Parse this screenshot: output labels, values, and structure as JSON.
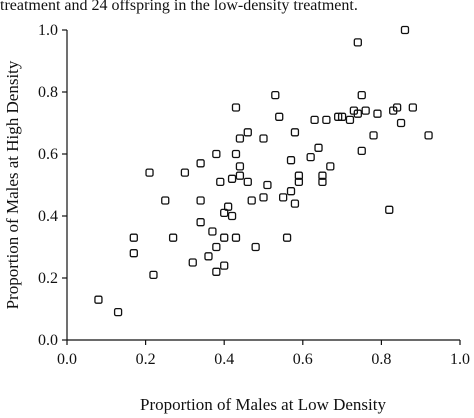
{
  "caption_fragment": "treatment and 24 offspring in the low-density treatment.",
  "chart_data": {
    "type": "scatter",
    "title": "",
    "xlabel": "Proportion of Males at Low Density",
    "ylabel": "Proportion of Males at High Density",
    "xlim": [
      0.0,
      1.0
    ],
    "ylim": [
      0.0,
      1.0
    ],
    "xticks": [
      "0.0",
      "0.2",
      "0.4",
      "0.6",
      "0.8",
      "1.0"
    ],
    "yticks": [
      "0.0",
      "0.2",
      "0.4",
      "0.6",
      "0.8",
      "1.0"
    ],
    "grid": false,
    "legend": "none",
    "marker": "open-square",
    "points": [
      [
        0.08,
        0.13
      ],
      [
        0.13,
        0.09
      ],
      [
        0.17,
        0.33
      ],
      [
        0.17,
        0.28
      ],
      [
        0.21,
        0.54
      ],
      [
        0.22,
        0.21
      ],
      [
        0.25,
        0.45
      ],
      [
        0.27,
        0.33
      ],
      [
        0.3,
        0.54
      ],
      [
        0.32,
        0.25
      ],
      [
        0.34,
        0.57
      ],
      [
        0.34,
        0.45
      ],
      [
        0.34,
        0.38
      ],
      [
        0.36,
        0.27
      ],
      [
        0.37,
        0.35
      ],
      [
        0.38,
        0.3
      ],
      [
        0.38,
        0.6
      ],
      [
        0.38,
        0.22
      ],
      [
        0.39,
        0.51
      ],
      [
        0.4,
        0.41
      ],
      [
        0.4,
        0.33
      ],
      [
        0.4,
        0.24
      ],
      [
        0.41,
        0.43
      ],
      [
        0.42,
        0.52
      ],
      [
        0.42,
        0.4
      ],
      [
        0.43,
        0.6
      ],
      [
        0.43,
        0.33
      ],
      [
        0.44,
        0.56
      ],
      [
        0.44,
        0.53
      ],
      [
        0.44,
        0.65
      ],
      [
        0.43,
        0.75
      ],
      [
        0.46,
        0.67
      ],
      [
        0.46,
        0.51
      ],
      [
        0.47,
        0.45
      ],
      [
        0.48,
        0.3
      ],
      [
        0.5,
        0.65
      ],
      [
        0.5,
        0.46
      ],
      [
        0.51,
        0.5
      ],
      [
        0.53,
        0.79
      ],
      [
        0.54,
        0.72
      ],
      [
        0.55,
        0.46
      ],
      [
        0.56,
        0.33
      ],
      [
        0.57,
        0.58
      ],
      [
        0.57,
        0.48
      ],
      [
        0.58,
        0.67
      ],
      [
        0.58,
        0.44
      ],
      [
        0.59,
        0.51
      ],
      [
        0.59,
        0.53
      ],
      [
        0.62,
        0.59
      ],
      [
        0.63,
        0.71
      ],
      [
        0.64,
        0.62
      ],
      [
        0.65,
        0.53
      ],
      [
        0.65,
        0.51
      ],
      [
        0.66,
        0.71
      ],
      [
        0.67,
        0.56
      ],
      [
        0.69,
        0.72
      ],
      [
        0.7,
        0.72
      ],
      [
        0.72,
        0.71
      ],
      [
        0.73,
        0.74
      ],
      [
        0.74,
        0.73
      ],
      [
        0.74,
        0.96
      ],
      [
        0.75,
        0.79
      ],
      [
        0.75,
        0.61
      ],
      [
        0.76,
        0.74
      ],
      [
        0.78,
        0.66
      ],
      [
        0.79,
        0.73
      ],
      [
        0.82,
        0.42
      ],
      [
        0.83,
        0.74
      ],
      [
        0.84,
        0.75
      ],
      [
        0.85,
        0.7
      ],
      [
        0.86,
        1.0
      ],
      [
        0.88,
        0.75
      ],
      [
        0.92,
        0.66
      ]
    ]
  }
}
